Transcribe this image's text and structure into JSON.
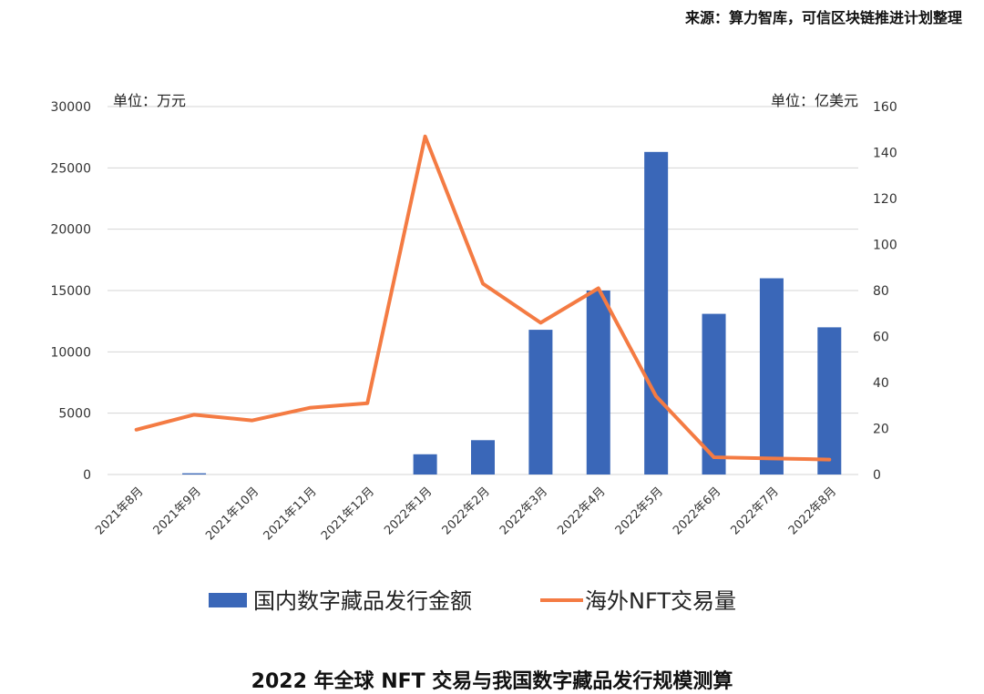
{
  "header": {
    "source": "来源：算力智库，可信区块链推进计划整理"
  },
  "caption": "2022 年全球 NFT 交易与我国数字藏品发行规模测算",
  "chart_data": {
    "type": "bar+line",
    "categories": [
      "2021年8月",
      "2021年9月",
      "2021年10月",
      "2021年11月",
      "2021年12月",
      "2022年1月",
      "2022年2月",
      "2022年3月",
      "2022年4月",
      "2022年5月",
      "2022年6月",
      "2022年7月",
      "2022年8月"
    ],
    "left_axis": {
      "label": "单位：万元",
      "ylim": [
        0,
        30000
      ],
      "ticks": [
        0,
        5000,
        10000,
        15000,
        20000,
        25000,
        30000
      ]
    },
    "right_axis": {
      "label": "单位：亿美元",
      "ylim": [
        0,
        160
      ],
      "ticks": [
        0,
        20,
        40,
        60,
        80,
        100,
        120,
        140,
        160
      ]
    },
    "series": [
      {
        "name": "国内数字藏品发行金额",
        "type": "bar",
        "axis": "left",
        "color": "#3a67b8",
        "values": [
          0,
          100,
          0,
          0,
          0,
          1650,
          2800,
          11800,
          15000,
          26300,
          13100,
          16000,
          12000
        ]
      },
      {
        "name": "海外NFT交易量",
        "type": "line",
        "axis": "right",
        "color": "#f47b43",
        "values": [
          19.5,
          26,
          23.5,
          29,
          31,
          147,
          83,
          66,
          81,
          34,
          7.5,
          7,
          6.5
        ]
      }
    ],
    "grid": true,
    "legend": "bottom"
  }
}
